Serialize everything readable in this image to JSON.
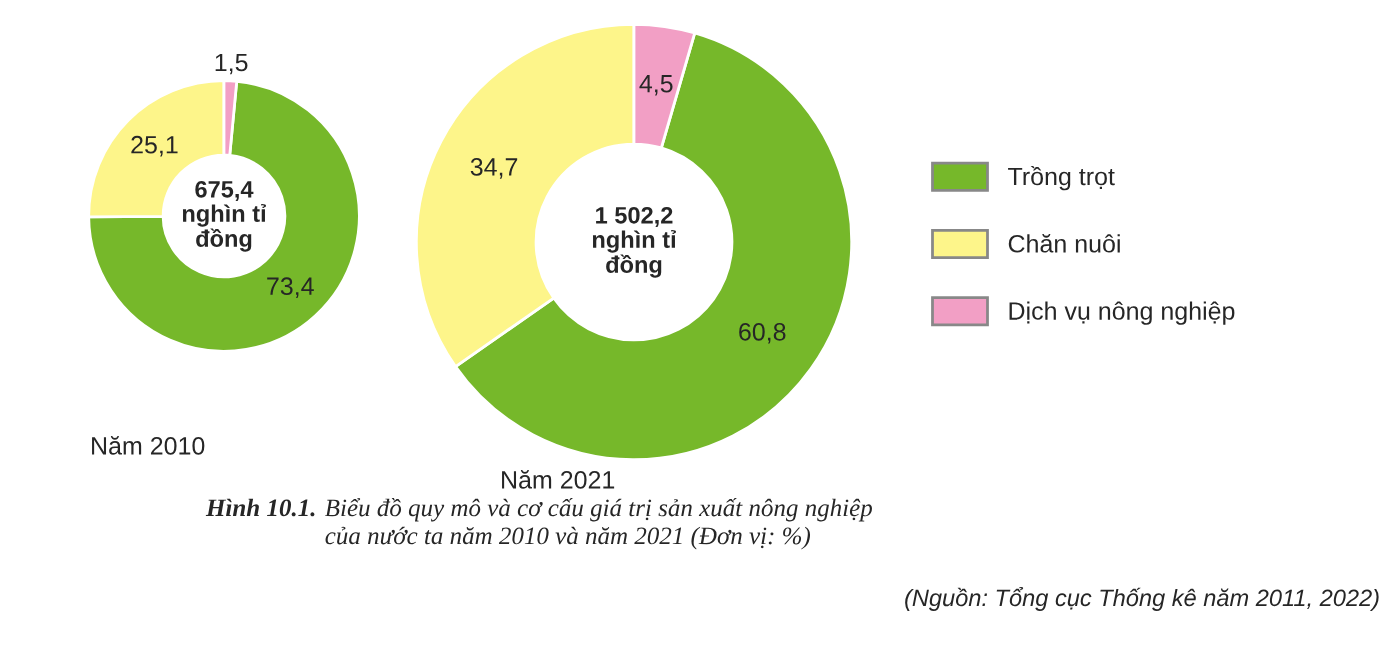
{
  "chart_data": [
    {
      "type": "donut",
      "title": "Năm 2010",
      "categories": [
        "Trồng trọt",
        "Chăn nuôi",
        "Dịch vụ nông nghiệp"
      ],
      "values": [
        73.4,
        25.1,
        1.5
      ],
      "colors": [
        "#76b82a",
        "#fdf58a",
        "#f29fc5"
      ],
      "value_labels": [
        "73,4",
        "25,1",
        "1,5"
      ],
      "legend": "right",
      "annotations": [
        "675,4\nnghìn tỉ\nđồng"
      ]
    },
    {
      "type": "donut",
      "title": "Năm 2021",
      "categories": [
        null,
        null,
        null
      ],
      "values": [
        60.8,
        34.7,
        4.5
      ],
      "colors": [
        "#76b82a",
        "#fdf58a",
        "#f29fc5"
      ],
      "value_labels": [
        "60,8",
        "34,7",
        "4,5"
      ],
      "annotations": [
        "1 502,2\nnghìn tỉ\nđồng",
        "Hình 10.1.",
        "Biểu đồ quy mô và cơ cấu giá trị sản xuất nông nghiệp\ncủa nước ta năm 2010 và năm 2021 (Đơn vị: %)",
        "(Nguồn: Tổng cục Thống kê năm 2011, 2022)"
      ]
    }
  ]
}
